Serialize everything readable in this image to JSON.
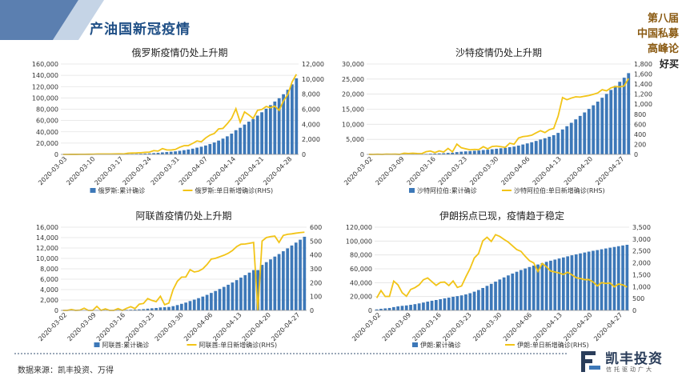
{
  "page": {
    "title": "产油国新冠疫情",
    "corner_lines": [
      "第八届",
      "中国私募",
      "高峰论"
    ],
    "corner_good": "好买",
    "source": "数据来源：凯丰投资、万得",
    "logo_name": "凯丰投资",
    "logo_slogan": "信托驱动广大"
  },
  "colors": {
    "bar": "#3d78b8",
    "line": "#f2c417",
    "title": "#1f4f86",
    "band": "#5b7fb0"
  },
  "chart_data": [
    {
      "type": "bar",
      "title": "俄罗斯疫情仍处上升期",
      "x_ticks": [
        "2020-03-03",
        "2020-03-10",
        "2020-03-17",
        "2020-03-24",
        "2020-03-31",
        "2020-04-07",
        "2020-04-14",
        "2020-04-21",
        "2020-04-28"
      ],
      "ylim": [
        0,
        160000
      ],
      "y_ticks": [
        "0",
        "20,000",
        "40,000",
        "60,000",
        "80,000",
        "100,000",
        "120,000",
        "140,000",
        "160,000"
      ],
      "y2lim": [
        0,
        12000
      ],
      "y2_ticks": [
        "0",
        "2,000",
        "4,000",
        "6,000",
        "8,000",
        "10,000",
        "12,000"
      ],
      "series": [
        {
          "name": "俄罗斯:累计确诊",
          "kind": "bar",
          "axis": "left",
          "values": [
            3,
            5,
            10,
            17,
            28,
            45,
            63,
            93,
            147,
            199,
            253,
            306,
            367,
            438,
            495,
            658,
            840,
            1036,
            1264,
            1534,
            1836,
            2337,
            2777,
            3548,
            4149,
            4731,
            5389,
            6343,
            7497,
            8672,
            10131,
            11917,
            13584,
            15770,
            18328,
            21102,
            24490,
            27938,
            32008,
            36793,
            42853,
            47121,
            52763,
            57999,
            62773,
            68622,
            74588,
            80949,
            87147,
            93558,
            99399,
            106498,
            114431,
            124054,
            134686
          ]
        },
        {
          "name": "俄罗斯:单日新增确诊(RHS)",
          "kind": "line",
          "axis": "right",
          "values": [
            0,
            2,
            5,
            7,
            11,
            17,
            18,
            30,
            54,
            52,
            54,
            53,
            61,
            71,
            57,
            163,
            182,
            196,
            228,
            270,
            302,
            501,
            440,
            771,
            601,
            582,
            658,
            954,
            1154,
            1175,
            1459,
            1786,
            1667,
            2186,
            2558,
            2774,
            3388,
            3448,
            4070,
            4785,
            6060,
            4268,
            5642,
            5236,
            4774,
            5849,
            5966,
            6361,
            6198,
            6411,
            5841,
            7099,
            7933,
            9623,
            10633
          ]
        }
      ],
      "legend": [
        "俄罗斯:累计确诊",
        "俄罗斯:单日新增确诊(RHS)"
      ]
    },
    {
      "type": "bar",
      "title": "沙特疫情仍处上升期",
      "x_ticks": [
        "2020-03-02",
        "2020-03-09",
        "2020-03-16",
        "2020-03-23",
        "2020-03-30",
        "2020-04-06",
        "2020-04-13",
        "2020-04-20",
        "2020-04-27"
      ],
      "ylim": [
        0,
        30000
      ],
      "y_ticks": [
        "0",
        "5,000",
        "10,000",
        "15,000",
        "20,000",
        "25,000",
        "30,000"
      ],
      "y2lim": [
        0,
        1800
      ],
      "y2_ticks": [
        "0",
        "200",
        "400",
        "600",
        "800",
        "1,000",
        "1,200",
        "1,400",
        "1,600",
        "1,800"
      ],
      "series": [
        {
          "name": "沙特阿拉伯:累计确诊",
          "kind": "bar",
          "axis": "left",
          "values": [
            1,
            1,
            5,
            5,
            11,
            15,
            20,
            21,
            45,
            62,
            86,
            103,
            118,
            171,
            238,
            274,
            344,
            392,
            511,
            562,
            767,
            900,
            1012,
            1104,
            1203,
            1299,
            1453,
            1563,
            1720,
            1885,
            2039,
            2179,
            2402,
            2605,
            2932,
            3287,
            3651,
            4033,
            4462,
            4934,
            5369,
            5862,
            6380,
            7142,
            8274,
            9362,
            10484,
            11631,
            12772,
            13930,
            15102,
            16299,
            17522,
            18811,
            20077,
            21402,
            22753,
            24097,
            25459,
            26970
          ]
        },
        {
          "name": "沙特阿拉伯:单日新增确诊(RHS)",
          "kind": "line",
          "axis": "right",
          "values": [
            1,
            0,
            4,
            0,
            6,
            4,
            5,
            1,
            24,
            17,
            24,
            17,
            15,
            53,
            67,
            36,
            70,
            48,
            119,
            51,
            205,
            133,
            112,
            92,
            99,
            96,
            154,
            110,
            157,
            165,
            154,
            140,
            223,
            203,
            327,
            355,
            364,
            382,
            429,
            472,
            435,
            493,
            518,
            762,
            1132,
            1088,
            1122,
            1147,
            1141,
            1158,
            1172,
            1197,
            1223,
            1289,
            1266,
            1325,
            1351,
            1344,
            1362,
            1511
          ]
        }
      ],
      "legend": [
        "沙特阿拉伯:累计确诊",
        "沙特阿拉伯:单日新增确诊(RHS)"
      ]
    },
    {
      "type": "bar",
      "title": "阿联酋疫情仍处上升期",
      "x_ticks": [
        "2020-03-02",
        "2020-03-09",
        "2020-03-16",
        "2020-03-23",
        "2020-03-30",
        "2020-04-06",
        "2020-04-13",
        "2020-04-20",
        "2020-04-27"
      ],
      "ylim": [
        0,
        16000
      ],
      "y_ticks": [
        "0",
        "2,000",
        "4,000",
        "6,000",
        "8,000",
        "10,000",
        "12,000",
        "14,000",
        "16,000"
      ],
      "y2lim": [
        0,
        600
      ],
      "y2_ticks": [
        "0",
        "100",
        "200",
        "300",
        "400",
        "500",
        "600"
      ],
      "series": [
        {
          "name": "阿联酋:累计确诊",
          "kind": "bar",
          "axis": "left",
          "values": [
            21,
            21,
            27,
            27,
            29,
            45,
            45,
            45,
            74,
            74,
            85,
            85,
            85,
            98,
            98,
            113,
            140,
            153,
            198,
            248,
            333,
            405,
            468,
            570,
            611,
            664,
            814,
            1024,
            1264,
            1505,
            1799,
            2076,
            2359,
            2659,
            2990,
            3360,
            3736,
            4123,
            4521,
            4933,
            5365,
            5825,
            6302,
            6781,
            7265,
            7755,
            7755,
            8756,
            9281,
            9813,
            10349,
            10839,
            11380,
            11929,
            12481,
            13038,
            13599,
            14163
          ]
        },
        {
          "name": "阿联酋:单日新增确诊(RHS)",
          "kind": "line",
          "axis": "right",
          "values": [
            0,
            0,
            6,
            0,
            2,
            16,
            0,
            0,
            29,
            0,
            11,
            0,
            0,
            13,
            0,
            15,
            27,
            13,
            45,
            50,
            85,
            72,
            63,
            102,
            41,
            53,
            150,
            210,
            240,
            241,
            294,
            277,
            283,
            300,
            331,
            370,
            376,
            387,
            398,
            412,
            432,
            460,
            477,
            479,
            484,
            490,
            0,
            500,
            525,
            532,
            536,
            490,
            541,
            549,
            552,
            557,
            561,
            564
          ]
        }
      ],
      "legend": [
        "阿联酋:累计确诊",
        "阿联酋:单日新增确诊(RHS)"
      ]
    },
    {
      "type": "bar",
      "title": "伊朗拐点已现，疫情趋于稳定",
      "x_ticks": [
        "2020-03-02",
        "2020-03-09",
        "2020-03-16",
        "2020-03-23",
        "2020-03-30",
        "2020-04-06",
        "2020-04-13",
        "2020-04-20",
        "2020-04-27"
      ],
      "ylim": [
        0,
        120000
      ],
      "y_ticks": [
        "0",
        "20,000",
        "40,000",
        "60,000",
        "80,000",
        "100,000",
        "120,000"
      ],
      "y2lim": [
        0,
        3500
      ],
      "y2_ticks": [
        "0",
        "500",
        "1,000",
        "1,500",
        "2,000",
        "2,500",
        "3,000",
        "3,500"
      ],
      "series": [
        {
          "name": "伊朗:累计确诊",
          "kind": "bar",
          "axis": "left",
          "values": [
            1501,
            2336,
            2922,
            3513,
            4747,
            5823,
            6566,
            7161,
            8042,
            9000,
            10075,
            11364,
            12729,
            13938,
            14991,
            16169,
            17361,
            18407,
            19644,
            20610,
            21638,
            23049,
            24811,
            27017,
            29406,
            32332,
            35408,
            38309,
            41495,
            44605,
            47593,
            50468,
            53183,
            55743,
            58226,
            60500,
            62589,
            64586,
            66220,
            68192,
            70029,
            71686,
            73303,
            74877,
            76389,
            77995,
            79494,
            80868,
            82211,
            83505,
            84802,
            85996,
            87026,
            88194,
            89328,
            90481,
            91472,
            92584,
            93657,
            94640
          ]
        },
        {
          "name": "伊朗:单日新增确诊(RHS)",
          "kind": "line",
          "axis": "right",
          "values": [
            523,
            835,
            586,
            591,
            1234,
            1076,
            743,
            595,
            881,
            958,
            1075,
            1289,
            1365,
            1209,
            1053,
            1178,
            1192,
            1046,
            1237,
            966,
            1028,
            1411,
            1762,
            2206,
            2389,
            2926,
            3076,
            2901,
            3186,
            3110,
            2988,
            2875,
            2715,
            2560,
            2483,
            2274,
            2089,
            1997,
            1634,
            1972,
            1837,
            1657,
            1617,
            1574,
            1512,
            1606,
            1499,
            1374,
            1343,
            1294,
            1297,
            1194,
            1030,
            1168,
            1134,
            1153,
            991,
            1112,
            1073,
            983
          ]
        }
      ],
      "legend": [
        "伊朗:累计确诊",
        "伊朗:单日新增确诊(RHS)"
      ]
    }
  ]
}
